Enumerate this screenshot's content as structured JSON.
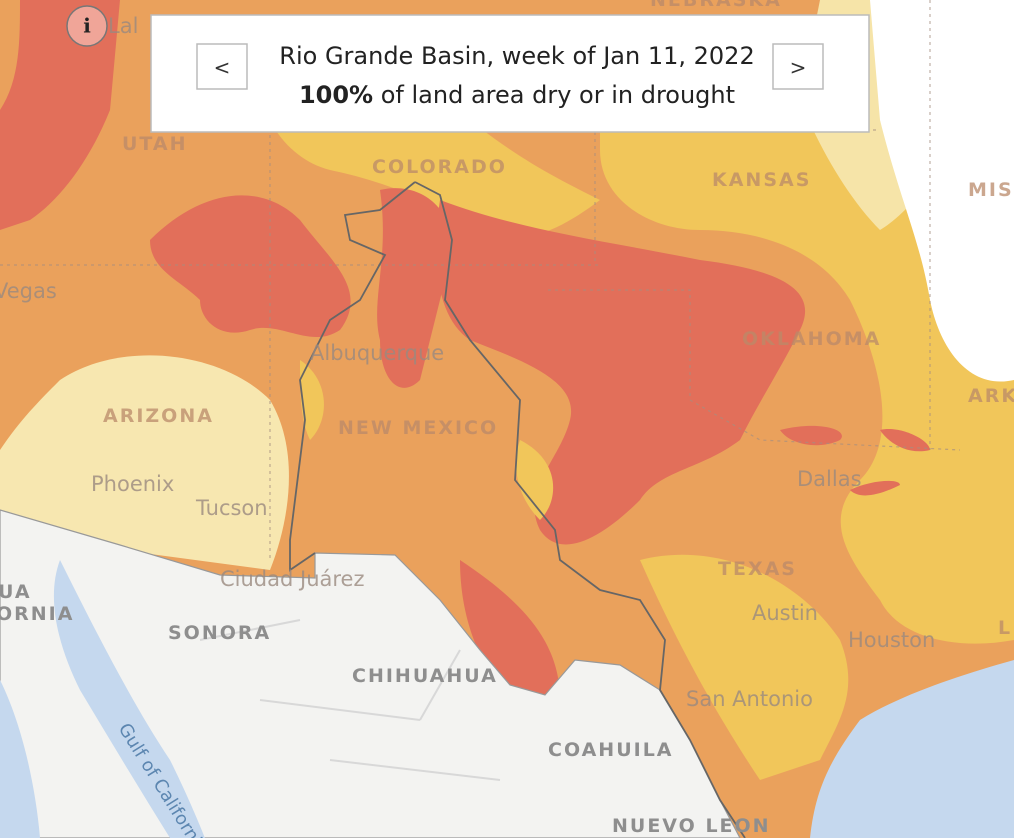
{
  "info_button": "i",
  "panel": {
    "prev_button": "<",
    "next_button": ">",
    "title": "Rio Grande Basin, week of Jan 11, 2022",
    "stat": "100%",
    "stat_text": "of land area dry or in drought"
  },
  "map_labels": {
    "states": [
      "NEBRASKA",
      "UTAH",
      "COLORADO",
      "KANSAS",
      "MIS",
      "ARIZONA",
      "NEW MEXICO",
      "OKLAHOMA",
      "ARK",
      "TEXAS",
      "L"
    ],
    "cities": [
      "Vegas",
      "Albuquerque",
      "Phoenix",
      "Tucson",
      "Dallas",
      "Austin",
      "Houston",
      "San Antonio",
      "Ciudad Juárez",
      "Lal"
    ],
    "mexico": [
      "UA",
      "ORNIA",
      "SONORA",
      "CHIHUAHUA",
      "COAHUILA",
      "NUEVO LEON"
    ],
    "water": [
      "Gulf of California"
    ]
  }
}
